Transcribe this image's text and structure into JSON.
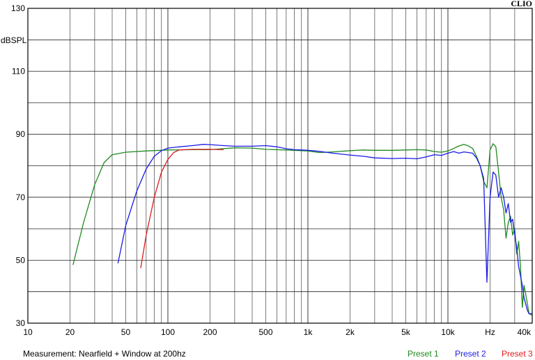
{
  "chart_data": {
    "type": "line",
    "brand": "CLIO",
    "ylabel": "dBSPL",
    "xscale": "log",
    "xlim": [
      10,
      40000
    ],
    "ylim": [
      30,
      130
    ],
    "y_ticks": [
      {
        "value": 130,
        "label": "130"
      },
      {
        "value": 110,
        "label": "110"
      },
      {
        "value": 90,
        "label": "90"
      },
      {
        "value": 70,
        "label": "70"
      },
      {
        "value": 50,
        "label": "50"
      },
      {
        "value": 30,
        "label": "30"
      }
    ],
    "x_ticks": [
      {
        "value": 10,
        "label": "10"
      },
      {
        "value": 20,
        "label": "20"
      },
      {
        "value": 50,
        "label": "50"
      },
      {
        "value": 100,
        "label": "100"
      },
      {
        "value": 200,
        "label": "200"
      },
      {
        "value": 500,
        "label": "500"
      },
      {
        "value": 1000,
        "label": "1k"
      },
      {
        "value": 2000,
        "label": "2k"
      },
      {
        "value": 5000,
        "label": "5k"
      },
      {
        "value": 10000,
        "label": "10k"
      },
      {
        "value": 20000,
        "label": "Hz"
      },
      {
        "value": 40000,
        "label": "40k"
      }
    ],
    "caption": "Measurement: Nearfield + Window at 200hz",
    "series": [
      {
        "name": "Preset 1",
        "color": "#1f8a1f",
        "points": [
          [
            21,
            48.5
          ],
          [
            25,
            62
          ],
          [
            30,
            74
          ],
          [
            35,
            81
          ],
          [
            40,
            83.5
          ],
          [
            50,
            84.3
          ],
          [
            70,
            84.7
          ],
          [
            100,
            85
          ],
          [
            150,
            85.1
          ],
          [
            200,
            85.1
          ],
          [
            300,
            85.7
          ],
          [
            400,
            85.6
          ],
          [
            500,
            85.2
          ],
          [
            700,
            85
          ],
          [
            1000,
            84.7
          ],
          [
            1200,
            84.2
          ],
          [
            1500,
            84.4
          ],
          [
            2000,
            84.8
          ],
          [
            2500,
            85
          ],
          [
            3000,
            84.9
          ],
          [
            4000,
            84.9
          ],
          [
            5000,
            85
          ],
          [
            6000,
            85.1
          ],
          [
            7000,
            85
          ],
          [
            8000,
            84.5
          ],
          [
            9000,
            84.3
          ],
          [
            10000,
            84.7
          ],
          [
            11000,
            85.5
          ],
          [
            12000,
            86.3
          ],
          [
            13000,
            86.8
          ],
          [
            14000,
            86.3
          ],
          [
            15000,
            85.5
          ],
          [
            16000,
            83
          ],
          [
            17000,
            80
          ],
          [
            18000,
            75
          ],
          [
            19000,
            73
          ],
          [
            20000,
            85
          ],
          [
            21000,
            87
          ],
          [
            22000,
            86
          ],
          [
            23000,
            78
          ],
          [
            24000,
            70
          ],
          [
            25000,
            66
          ],
          [
            26000,
            57
          ],
          [
            27000,
            62
          ],
          [
            28000,
            64
          ],
          [
            29000,
            58
          ],
          [
            30000,
            60
          ],
          [
            31000,
            52
          ],
          [
            32000,
            56
          ],
          [
            33000,
            48
          ],
          [
            34000,
            35
          ],
          [
            35000,
            42
          ],
          [
            36000,
            39
          ],
          [
            37000,
            36
          ],
          [
            38000,
            33
          ],
          [
            40000,
            32.5
          ]
        ]
      },
      {
        "name": "Preset 2",
        "color": "#1a1ae6",
        "points": [
          [
            44,
            49
          ],
          [
            50,
            61
          ],
          [
            60,
            72
          ],
          [
            70,
            79
          ],
          [
            80,
            83
          ],
          [
            90,
            84.8
          ],
          [
            100,
            85.6
          ],
          [
            120,
            86
          ],
          [
            150,
            86.4
          ],
          [
            180,
            86.8
          ],
          [
            200,
            86.7
          ],
          [
            250,
            86.4
          ],
          [
            300,
            86.2
          ],
          [
            400,
            86.2
          ],
          [
            500,
            86.4
          ],
          [
            600,
            86
          ],
          [
            700,
            85.4
          ],
          [
            800,
            85.1
          ],
          [
            900,
            85
          ],
          [
            1000,
            84.9
          ],
          [
            1200,
            84.6
          ],
          [
            1500,
            84
          ],
          [
            2000,
            83.4
          ],
          [
            2500,
            83
          ],
          [
            3000,
            82.5
          ],
          [
            4000,
            82.3
          ],
          [
            5000,
            82.4
          ],
          [
            6000,
            82.2
          ],
          [
            7000,
            82.8
          ],
          [
            8000,
            83.5
          ],
          [
            9000,
            83.3
          ],
          [
            10000,
            84
          ],
          [
            11000,
            84.5
          ],
          [
            12000,
            84
          ],
          [
            13000,
            84.4
          ],
          [
            14000,
            84.2
          ],
          [
            15000,
            84
          ],
          [
            16000,
            82.5
          ],
          [
            17000,
            80
          ],
          [
            18000,
            76
          ],
          [
            19000,
            43
          ],
          [
            20000,
            70
          ],
          [
            21000,
            78
          ],
          [
            22000,
            77
          ],
          [
            23000,
            70
          ],
          [
            24000,
            73
          ],
          [
            25000,
            70
          ],
          [
            26000,
            65
          ],
          [
            27000,
            68
          ],
          [
            28000,
            62
          ],
          [
            29000,
            63
          ],
          [
            30000,
            58
          ],
          [
            31000,
            54
          ],
          [
            32000,
            48
          ],
          [
            33000,
            45
          ],
          [
            34000,
            42
          ],
          [
            35000,
            38
          ],
          [
            36000,
            36
          ],
          [
            37000,
            34
          ],
          [
            38000,
            33
          ],
          [
            40000,
            33
          ]
        ]
      },
      {
        "name": "Preset 3",
        "color": "#e01a1a",
        "points": [
          [
            64,
            47.5
          ],
          [
            70,
            58
          ],
          [
            80,
            70
          ],
          [
            90,
            78
          ],
          [
            100,
            82
          ],
          [
            110,
            84.2
          ],
          [
            120,
            85
          ],
          [
            150,
            85.2
          ],
          [
            200,
            85.2
          ],
          [
            250,
            85.1
          ]
        ]
      }
    ]
  }
}
